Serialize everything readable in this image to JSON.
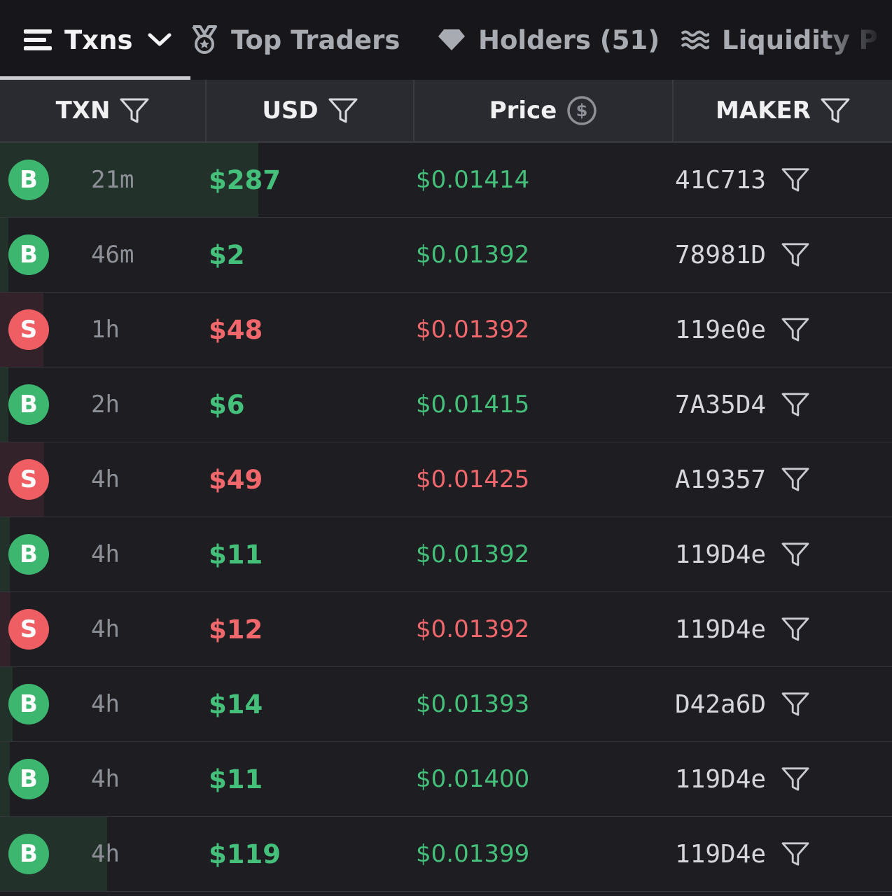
{
  "tabs": [
    {
      "label": "Txns",
      "icon": "menu-icon"
    },
    {
      "label": "Top Traders",
      "icon": "medal-icon"
    },
    {
      "label": "Holders (51)",
      "icon": "diamond-icon"
    },
    {
      "label": "Liquidity P",
      "icon": "waves-icon"
    }
  ],
  "columns": {
    "txn": "TXN",
    "usd": "USD",
    "price": "Price",
    "maker": "MAKER"
  },
  "colors": {
    "buy": "#44c07a",
    "sell": "#f0676c",
    "background": "#1d1d22",
    "header": "#2a2b30"
  },
  "rows": [
    {
      "type": "B",
      "side": "buy",
      "age": "21m",
      "usd": "$287",
      "price": "$0.01414",
      "maker": "41C713",
      "volume_fraction": 1.0
    },
    {
      "type": "B",
      "side": "buy",
      "age": "46m",
      "usd": "$2",
      "price": "$0.01392",
      "maker": "78981D",
      "volume_fraction": 0.007
    },
    {
      "type": "S",
      "side": "sell",
      "age": "1h",
      "usd": "$48",
      "price": "$0.01392",
      "maker": "119e0e",
      "volume_fraction": 0.167
    },
    {
      "type": "B",
      "side": "buy",
      "age": "2h",
      "usd": "$6",
      "price": "$0.01415",
      "maker": "7A35D4",
      "volume_fraction": 0.021
    },
    {
      "type": "S",
      "side": "sell",
      "age": "4h",
      "usd": "$49",
      "price": "$0.01425",
      "maker": "A19357",
      "volume_fraction": 0.171
    },
    {
      "type": "B",
      "side": "buy",
      "age": "4h",
      "usd": "$11",
      "price": "$0.01392",
      "maker": "119D4e",
      "volume_fraction": 0.038
    },
    {
      "type": "S",
      "side": "sell",
      "age": "4h",
      "usd": "$12",
      "price": "$0.01392",
      "maker": "119D4e",
      "volume_fraction": 0.042
    },
    {
      "type": "B",
      "side": "buy",
      "age": "4h",
      "usd": "$14",
      "price": "$0.01393",
      "maker": "D42a6D",
      "volume_fraction": 0.049
    },
    {
      "type": "B",
      "side": "buy",
      "age": "4h",
      "usd": "$11",
      "price": "$0.01400",
      "maker": "119D4e",
      "volume_fraction": 0.038
    },
    {
      "type": "B",
      "side": "buy",
      "age": "4h",
      "usd": "$119",
      "price": "$0.01399",
      "maker": "119D4e",
      "volume_fraction": 0.415
    }
  ]
}
